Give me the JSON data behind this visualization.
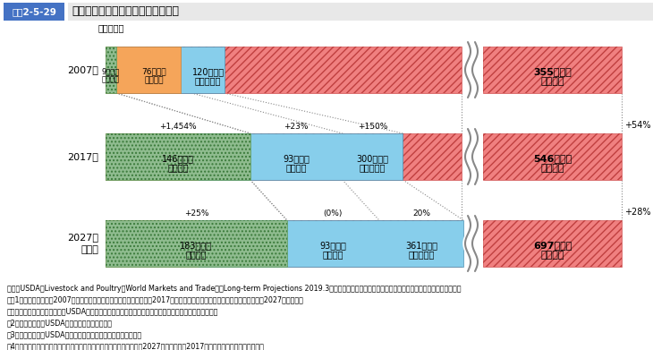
{
  "rows": [
    {
      "year": "2007年",
      "china_val": 9,
      "japan_val": 76,
      "asia_val": 120,
      "world_val": 355,
      "change_china": null,
      "change_japan": null,
      "change_asia": null,
      "change_world": null
    },
    {
      "year": "2017年",
      "china_val": 146,
      "japan_val": 93,
      "asia_val": 300,
      "world_val": 546,
      "change_china": "+1,454%",
      "change_japan": "+23%",
      "change_asia": "+150%",
      "change_world": "+54%"
    },
    {
      "year": "2027年\n見通し",
      "china_val": 183,
      "japan_val": 93,
      "asia_val": 361,
      "world_val": 697,
      "change_china": "+25%",
      "change_japan": "(0%)",
      "change_asia": "20%",
      "change_world": "+28%"
    }
  ],
  "color_china": "#8fbc8f",
  "color_japan": "#f5a55a",
  "color_asia": "#87ceeb",
  "color_world": "#f08080",
  "color_world_edge": "#d05050",
  "color_china_edge": "#5a9a5a",
  "color_japan_edge": "#c8823a",
  "color_asia_edge": "#5090b0",
  "title_box_color": "#4472c4",
  "title_bg_color": "#d9d9d9",
  "title_text": "図表2-5-29",
  "title_main": "世界とアジア地域の豚肉の輸入状況",
  "unit_label": "（輸入量）",
  "footnotes": [
    "資料：USDA「Livestock and Poultry：World Markets and Trade」「Long-term Projections 2019.3（部分肉ベース換算）」、財務省「貿易統計」を基に農林水産省作成",
    "注：1）「アジア」は、2007年は日本、香港、韓国、フィリピンの計。2017年は日本、中国、韓国、香港、フィリピンの計。2027年は日本、",
    "　　　中国、香港、韓国の計（USDA資料中の主要輸入国として明示されているアジアの国・地域を合算）",
    "　2）「中国」は、USDA資料中の中国、香港の計",
    "　3）「世界」は、USDA資料中の主要豚肉輸入国の輸入量の合計",
    "　4）「日本」は、貿易統計の数値（年度ベース）。なお、「日本」の2027年見通しは、2017年の輸入実績を据え置いたもの"
  ]
}
